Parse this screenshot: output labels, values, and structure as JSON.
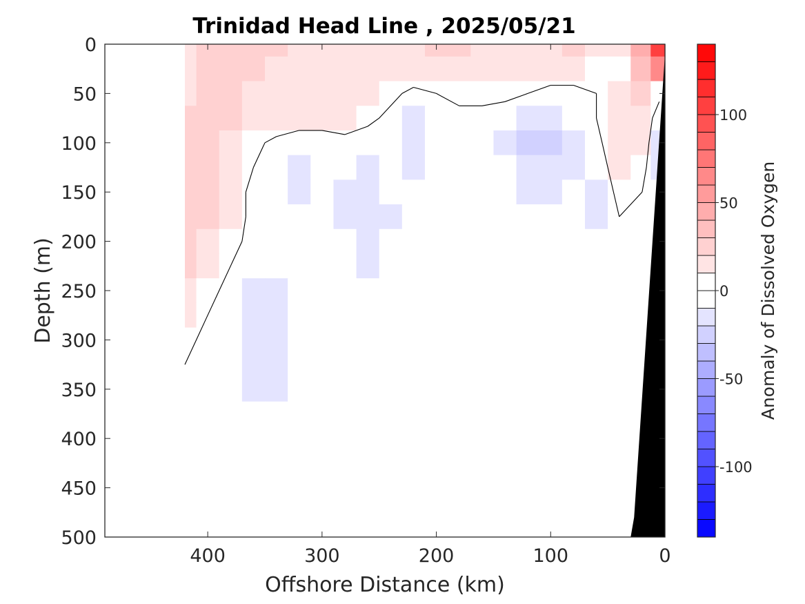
{
  "chart_data": {
    "type": "heatmap",
    "subtype": "filled-contour-section",
    "title": "Trinidad Head Line , 2025/05/21",
    "xlabel": "Offshore Distance (km)",
    "ylabel": "Depth (m)",
    "colorbar_label": "Anomaly of Dissolved Oxygen",
    "xlim": [
      490,
      0
    ],
    "ylim": [
      0,
      500
    ],
    "y_reversed": true,
    "x_reversed": true,
    "xticks": [
      400,
      300,
      200,
      100,
      0
    ],
    "yticks": [
      0,
      50,
      100,
      150,
      200,
      250,
      300,
      350,
      400,
      450,
      500
    ],
    "clim": [
      -140,
      140
    ],
    "colorbar_ticks": [
      100,
      50,
      0,
      -50,
      -100
    ],
    "colorbar_levels": 28,
    "colormap": {
      "low": "#0000ff",
      "mid": "#ffffff",
      "high": "#ff0000"
    },
    "data_extent_km": [
      420,
      0
    ],
    "bathymetry_color": "#000000",
    "contour_line_level": 0,
    "grid": false,
    "x_km": [
      420,
      400,
      380,
      360,
      340,
      320,
      300,
      280,
      260,
      240,
      220,
      200,
      180,
      160,
      140,
      120,
      100,
      80,
      60,
      40,
      20,
      5
    ],
    "depth_m": [
      0,
      25,
      50,
      75,
      100,
      125,
      150,
      175,
      200,
      225,
      250,
      275,
      300,
      325,
      350,
      375,
      400,
      425,
      450,
      475,
      500
    ],
    "anomaly_grid": [
      [
        15,
        20,
        20,
        20,
        20,
        15,
        15,
        15,
        15,
        15,
        15,
        20,
        20,
        15,
        15,
        15,
        15,
        20,
        15,
        10,
        40,
        100
      ],
      [
        15,
        20,
        20,
        20,
        15,
        15,
        15,
        15,
        15,
        15,
        15,
        15,
        15,
        10,
        10,
        10,
        10,
        10,
        5,
        5,
        30,
        60
      ],
      [
        15,
        20,
        20,
        15,
        15,
        10,
        10,
        10,
        10,
        5,
        -5,
        0,
        5,
        5,
        5,
        0,
        -5,
        -5,
        0,
        10,
        20,
        5
      ],
      [
        20,
        20,
        20,
        15,
        15,
        10,
        10,
        10,
        5,
        -5,
        -15,
        -10,
        -5,
        -5,
        -10,
        -15,
        -15,
        -10,
        0,
        15,
        15,
        -10
      ],
      [
        25,
        20,
        15,
        5,
        -5,
        -10,
        -10,
        -5,
        -10,
        -10,
        -20,
        -10,
        -5,
        -10,
        -15,
        -25,
        -25,
        -15,
        -5,
        15,
        10,
        -15
      ],
      [
        25,
        20,
        15,
        0,
        -10,
        -15,
        -10,
        -10,
        -15,
        -10,
        -15,
        -5,
        -5,
        -5,
        -10,
        -20,
        -20,
        -15,
        -10,
        10,
        5,
        -15
      ],
      [
        20,
        20,
        10,
        -5,
        -10,
        -15,
        -5,
        -15,
        -20,
        -10,
        -10,
        -5,
        -5,
        -5,
        -10,
        -15,
        -15,
        -10,
        -15,
        5,
        0,
        -10
      ],
      [
        25,
        20,
        10,
        -5,
        -10,
        -10,
        -5,
        -15,
        -20,
        -15,
        -5,
        -5,
        -5,
        -5,
        -10,
        -10,
        -10,
        -5,
        -15,
        0,
        0,
        -10
      ],
      [
        25,
        15,
        5,
        -5,
        -10,
        -10,
        -5,
        -10,
        -15,
        -10,
        -5,
        -5,
        -5,
        -5,
        -10,
        -10,
        -5,
        -5,
        -10,
        -5,
        -5,
        -10
      ],
      [
        20,
        10,
        0,
        -10,
        -10,
        -5,
        -5,
        -10,
        -15,
        -10,
        -5,
        -5,
        -5,
        -5,
        -10,
        -10,
        -5,
        -5,
        -10,
        -5,
        -5,
        -5
      ],
      [
        15,
        5,
        -5,
        -15,
        -15,
        -10,
        -5,
        -5,
        -10,
        -5,
        -5,
        -5,
        -5,
        -5,
        -5,
        -10,
        -5,
        -5,
        -5,
        -5,
        -5,
        -5
      ],
      [
        10,
        0,
        -5,
        -15,
        -15,
        -10,
        0,
        -5,
        -5,
        -5,
        -5,
        -5,
        -5,
        -5,
        -5,
        -5,
        -5,
        -5,
        -5,
        -5,
        -5,
        -5
      ],
      [
        5,
        -5,
        -5,
        -15,
        -15,
        -10,
        0,
        -5,
        -5,
        -5,
        -5,
        -5,
        -5,
        -5,
        -5,
        -5,
        -5,
        -5,
        0,
        -5,
        -5,
        -5
      ],
      [
        0,
        -5,
        -5,
        -15,
        -15,
        -10,
        -5,
        -5,
        -5,
        -5,
        -5,
        -5,
        -5,
        -5,
        0,
        0,
        0,
        0,
        0,
        0,
        -5,
        -5
      ],
      [
        -5,
        -5,
        -5,
        -15,
        -15,
        -10,
        -5,
        -5,
        -5,
        -5,
        -5,
        0,
        0,
        0,
        0,
        0,
        0,
        0,
        0,
        0,
        0,
        -5
      ],
      [
        -5,
        -5,
        -5,
        -10,
        -10,
        -5,
        -5,
        -5,
        -5,
        -5,
        0,
        0,
        0,
        0,
        0,
        0,
        0,
        0,
        0,
        0,
        0,
        -5
      ],
      [
        -5,
        -5,
        -5,
        -5,
        -5,
        -5,
        -5,
        0,
        0,
        0,
        0,
        0,
        0,
        0,
        0,
        0,
        0,
        0,
        0,
        0,
        0,
        -5
      ],
      [
        -5,
        -5,
        -5,
        -5,
        -5,
        -5,
        0,
        0,
        0,
        0,
        0,
        0,
        0,
        0,
        0,
        0,
        0,
        0,
        0,
        0,
        0,
        0
      ],
      [
        -5,
        -5,
        -5,
        -5,
        -5,
        0,
        0,
        0,
        0,
        0,
        0,
        0,
        0,
        0,
        0,
        0,
        0,
        -5,
        -5,
        -5,
        0,
        0
      ],
      [
        -5,
        -5,
        -5,
        0,
        0,
        0,
        0,
        0,
        0,
        0,
        0,
        0,
        0,
        0,
        0,
        0,
        0,
        -5,
        -5,
        -5,
        0,
        0
      ],
      [
        -5,
        -5,
        -5,
        -5,
        0,
        0,
        0,
        0,
        0,
        0,
        0,
        -5,
        -5,
        -5,
        -5,
        -5,
        -5,
        -5,
        -5,
        -5,
        0,
        0
      ]
    ]
  }
}
